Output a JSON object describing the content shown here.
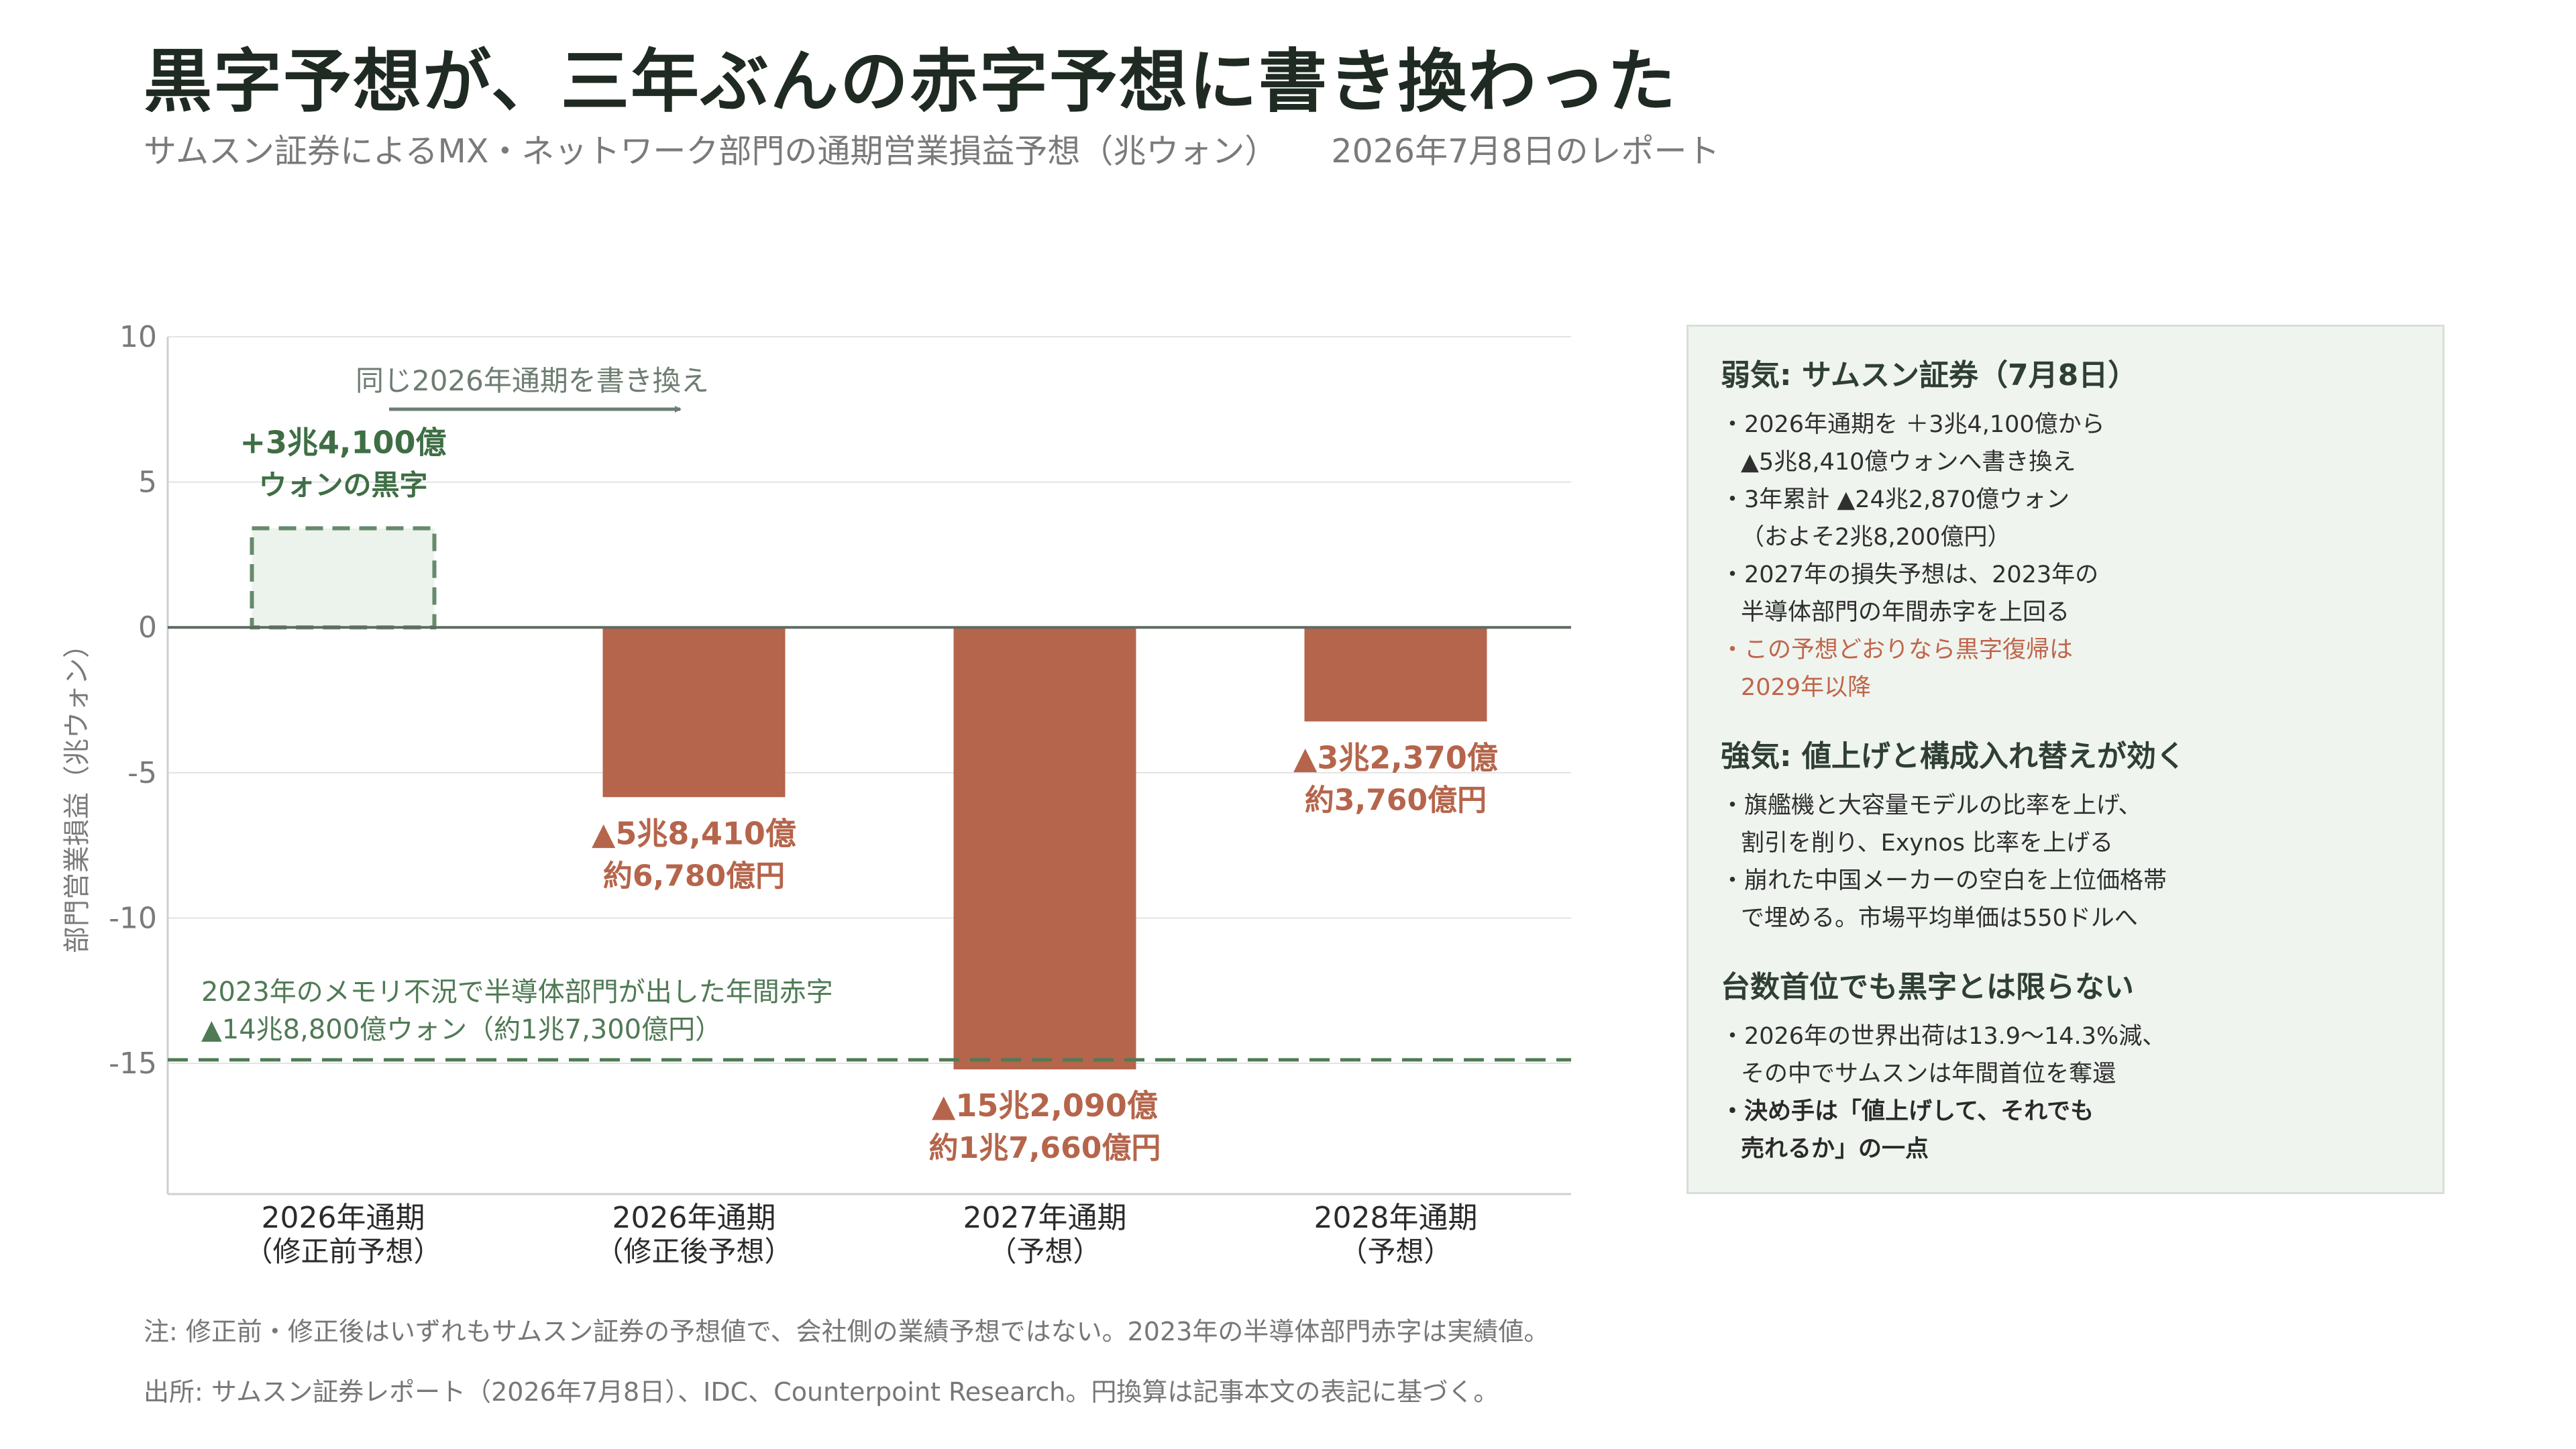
{
  "header": {
    "title": "黒字予想が、三年ぶんの赤字予想に書き換わった",
    "subtitle": "サムスン証券によるMX・ネットワーク部門の通期営業損益予想（兆ウォン）",
    "report_date": "2026年7月8日のレポート"
  },
  "chart_data": {
    "type": "bar",
    "ylabel": "部門営業損益（兆ウォン）",
    "ylim": [
      -19.5,
      10
    ],
    "yticks": [
      10,
      5,
      0,
      -5,
      -10,
      -15
    ],
    "ytick_labels": [
      "10",
      "5",
      "0",
      "-5",
      "-10",
      "-15"
    ],
    "categories": [
      {
        "line1": "2026年通期",
        "line2": "（修正前予想）"
      },
      {
        "line1": "2026年通期",
        "line2": "（修正後予想）"
      },
      {
        "line1": "2027年通期",
        "line2": "（予想）"
      },
      {
        "line1": "2028年通期",
        "line2": "（予想）"
      }
    ],
    "values": [
      3.41,
      -5.841,
      -15.209,
      -3.237
    ],
    "styles": [
      "dashed",
      "solid",
      "solid",
      "solid"
    ],
    "data_labels": [
      {
        "line1": "+3兆4,100億",
        "line2": "ウォンの黒字"
      },
      {
        "line1": "▲5兆8,410億",
        "line2": "約6,780億円"
      },
      {
        "line1": "▲15兆2,090億",
        "line2": "約1兆7,660億円"
      },
      {
        "line1": "▲3兆2,370億",
        "line2": "約3,760億円"
      }
    ],
    "reference_line": {
      "value": -14.88,
      "label_line1": "2023年のメモリ不況で半導体部門が出した年間赤字",
      "label_line2": "▲14兆8,800億ウォン（約1兆7,300億円）",
      "color": "#4f7a55"
    },
    "annotation": "同じ2026年通期を書き換え",
    "colors": {
      "negative": "#b5654b",
      "positive_fill": "#ecf3ec",
      "positive_stroke": "#668a6c",
      "positive_text": "#3f6e45"
    }
  },
  "panel": {
    "sections": [
      {
        "heading": "弱気: サムスン証券（7月8日）",
        "items": [
          {
            "text": "・2026年通期を ＋3兆4,100億から\n▲5兆8,410億ウォンへ書き換え",
            "style": "normal"
          },
          {
            "text": "・3年累計 ▲24兆2,870億ウォン\n（およそ2兆8,200億円）",
            "style": "normal"
          },
          {
            "text": "・2027年の損失予想は、2023年の\n半導体部門の年間赤字を上回る",
            "style": "normal"
          },
          {
            "text": "・この予想どおりなら黒字復帰は\n2029年以降",
            "style": "accent"
          }
        ]
      },
      {
        "heading": "強気: 値上げと構成入れ替えが効く",
        "items": [
          {
            "text": "・旗艦機と大容量モデルの比率を上げ、\n割引を削り、Exynos 比率を上げる",
            "style": "normal"
          },
          {
            "text": "・崩れた中国メーカーの空白を上位価格帯\nで埋める。市場平均単価は550ドルへ",
            "style": "normal"
          }
        ]
      },
      {
        "heading": "台数首位でも黒字とは限らない",
        "items": [
          {
            "text": "・2026年の世界出荷は13.9〜14.3%減、\nその中でサムスンは年間首位を奪還",
            "style": "normal"
          },
          {
            "text": "・決め手は「値上げして、それでも\n売れるか」の一点",
            "style": "strong"
          }
        ]
      }
    ]
  },
  "footer": {
    "note": "注: 修正前・修正後はいずれもサムスン証券の予想値で、会社側の業績予想ではない。2023年の半導体部門赤字は実績値。",
    "source": "出所: サムスン証券レポート（2026年7月8日）、IDC、Counterpoint Research。円換算は記事本文の表記に基づく。"
  }
}
